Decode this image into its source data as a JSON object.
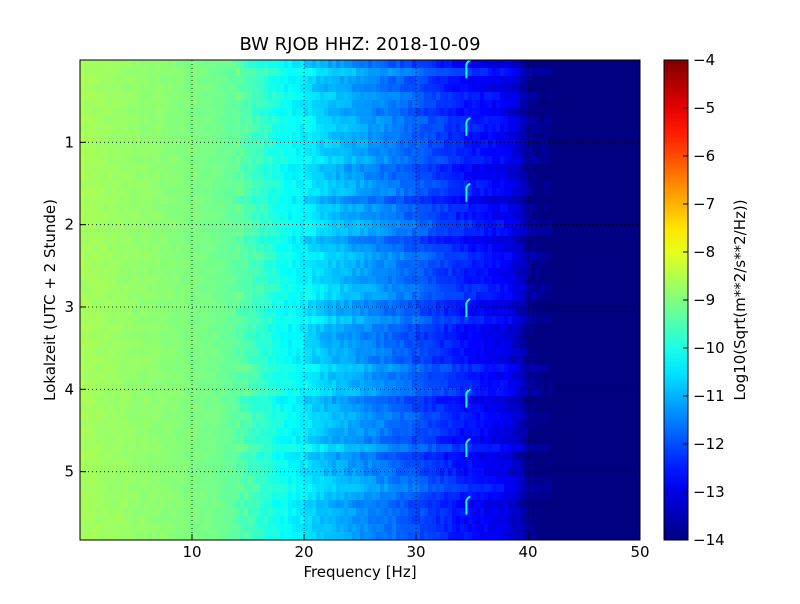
{
  "chart_data": {
    "type": "heatmap",
    "title": "BW RJOB HHZ: 2018-10-09",
    "xlabel": "Frequency [Hz]",
    "ylabel": "Lokalzeit (UTC + 2 Stunde)",
    "xlim": [
      0,
      50
    ],
    "ylim": [
      0,
      5.83
    ],
    "y_inverted": true,
    "x_ticks": [
      10,
      20,
      30,
      40,
      50
    ],
    "x_tick_labels": [
      "10",
      "20",
      "30",
      "40",
      "50"
    ],
    "y_ticks": [
      1,
      2,
      3,
      4,
      5
    ],
    "y_tick_labels": [
      "1",
      "2",
      "3",
      "4",
      "5"
    ],
    "grid": true,
    "colorbar": {
      "label": "Log10(Sqrt(m**2/s**2/Hz))",
      "min": -14,
      "max": -4,
      "ticks": [
        -4,
        -5,
        -6,
        -7,
        -8,
        -9,
        -10,
        -11,
        -12,
        -13,
        -14
      ],
      "tick_labels": [
        "−4",
        "−5",
        "−6",
        "−7",
        "−8",
        "−9",
        "−10",
        "−11",
        "−12",
        "−13",
        "−14"
      ],
      "colormap": "jet"
    },
    "frequency_profile": {
      "frequency_hz": [
        0,
        2,
        5,
        8,
        10,
        12,
        14,
        16,
        18,
        20,
        22,
        25,
        28,
        30,
        32,
        34,
        36,
        38,
        39,
        40,
        41,
        42,
        50
      ],
      "log10_amplitude": [
        -8.6,
        -8.7,
        -8.8,
        -8.9,
        -9.0,
        -9.1,
        -9.3,
        -9.7,
        -10.1,
        -10.4,
        -10.8,
        -11.2,
        -11.6,
        -11.9,
        -12.2,
        -12.5,
        -12.7,
        -12.9,
        -13.2,
        -13.7,
        -14.0,
        -14.0,
        -14.0
      ]
    },
    "annotations": [
      {
        "frequency_hz": 34.5,
        "feature": "hook-shaped signal",
        "times_h": [
          0.1,
          0.8,
          1.6,
          3.0,
          4.1,
          4.7,
          5.4
        ]
      }
    ]
  }
}
